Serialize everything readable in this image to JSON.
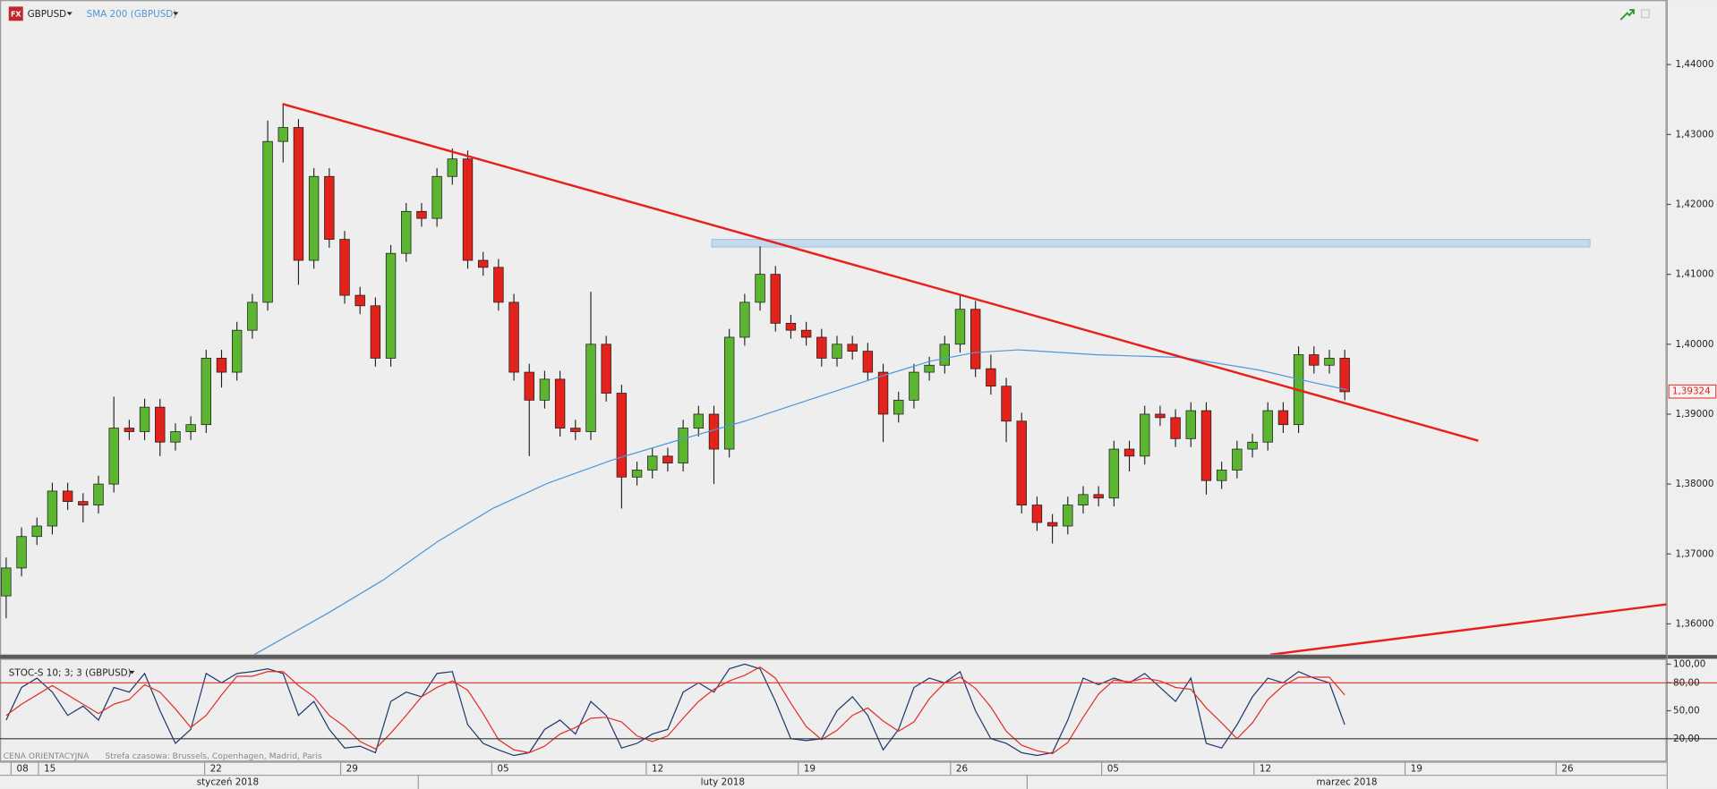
{
  "chart_data": [
    {
      "type": "candlestick",
      "title": "GBPUSD",
      "x": [
        0.2,
        0.7,
        1.2,
        1.7,
        2.2,
        2.7,
        3.2,
        3.7,
        4.2,
        4.7,
        5.2,
        5.7,
        6.2,
        6.7,
        7.2,
        7.7,
        8.2,
        8.7,
        9.2,
        9.7,
        10.2,
        10.7,
        11.2,
        11.7,
        12.2,
        12.7,
        13.2,
        13.7,
        14.2,
        14.7,
        15.2,
        15.7,
        16.2,
        16.7,
        17.2,
        17.7,
        18.2,
        18.7,
        19.2,
        19.7,
        20.2,
        20.7,
        21.2,
        21.7,
        22.2,
        22.7,
        23.2,
        23.7,
        24.2,
        24.7,
        25.2,
        25.7,
        26.2,
        26.7,
        27.2,
        27.7,
        28.2,
        28.7,
        29.2,
        29.7,
        30.2,
        30.7,
        31.2,
        31.7,
        32.2,
        32.7,
        33.2,
        33.7,
        34.2,
        34.7,
        35.2,
        35.7,
        36.2,
        36.7,
        37.2,
        37.7,
        38.2,
        38.7,
        39.2,
        39.7,
        40.2,
        40.7,
        41.2,
        41.7,
        42.2,
        42.7,
        43.2,
        43.7
      ],
      "open": [
        1.364,
        1.368,
        1.3725,
        1.374,
        1.379,
        1.3775,
        1.377,
        1.38,
        1.388,
        1.3875,
        1.391,
        1.386,
        1.3875,
        1.3885,
        1.398,
        1.396,
        1.402,
        1.406,
        1.429,
        1.431,
        1.412,
        1.424,
        1.415,
        1.407,
        1.4055,
        1.398,
        1.413,
        1.419,
        1.418,
        1.424,
        1.4265,
        1.412,
        1.411,
        1.406,
        1.396,
        1.392,
        1.395,
        1.388,
        1.3875,
        1.4,
        1.393,
        1.381,
        1.382,
        1.384,
        1.383,
        1.388,
        1.39,
        1.385,
        1.401,
        1.406,
        1.41,
        1.403,
        1.402,
        1.401,
        1.398,
        1.4,
        1.399,
        1.396,
        1.39,
        1.392,
        1.396,
        1.397,
        1.4,
        1.405,
        1.3965,
        1.394,
        1.389,
        1.377,
        1.3745,
        1.374,
        1.377,
        1.3785,
        1.378,
        1.385,
        1.384,
        1.39,
        1.3895,
        1.3865,
        1.3905,
        1.3805,
        1.382,
        1.385,
        1.386,
        1.3905,
        1.3885,
        1.3985,
        1.397,
        1.398
      ],
      "high": [
        1.3695,
        1.3738,
        1.3752,
        1.3802,
        1.3802,
        1.3787,
        1.3812,
        1.3925,
        1.3892,
        1.3922,
        1.3922,
        1.3887,
        1.3897,
        1.3992,
        1.3992,
        1.4032,
        1.4072,
        1.432,
        1.4343,
        1.4322,
        1.4252,
        1.4252,
        1.4162,
        1.4082,
        1.4067,
        1.4142,
        1.4202,
        1.4202,
        1.4252,
        1.428,
        1.4277,
        1.4132,
        1.4122,
        1.4072,
        1.3972,
        1.3962,
        1.3962,
        1.3892,
        1.4075,
        1.4012,
        1.3942,
        1.3832,
        1.3852,
        1.3852,
        1.3892,
        1.3912,
        1.3912,
        1.4022,
        1.4072,
        1.414,
        1.4112,
        1.4042,
        1.4032,
        1.4022,
        1.4012,
        1.4012,
        1.4002,
        1.3972,
        1.3932,
        1.3972,
        1.3982,
        1.4012,
        1.407,
        1.4062,
        1.3985,
        1.3952,
        1.3902,
        1.3782,
        1.3757,
        1.3782,
        1.3797,
        1.3797,
        1.3862,
        1.3862,
        1.3912,
        1.3912,
        1.3907,
        1.3917,
        1.3917,
        1.3832,
        1.3862,
        1.3872,
        1.3917,
        1.3917,
        1.3997,
        1.3997,
        1.3992,
        1.3992
      ],
      "low": [
        1.3608,
        1.3668,
        1.3713,
        1.3728,
        1.3763,
        1.3745,
        1.3758,
        1.3788,
        1.3863,
        1.3863,
        1.384,
        1.3848,
        1.3863,
        1.3873,
        1.3938,
        1.3948,
        1.4008,
        1.4048,
        1.426,
        1.4085,
        1.4108,
        1.4138,
        1.4058,
        1.4043,
        1.3968,
        1.3968,
        1.4118,
        1.4168,
        1.4168,
        1.4228,
        1.4108,
        1.4098,
        1.4048,
        1.3948,
        1.384,
        1.3908,
        1.3868,
        1.3863,
        1.3863,
        1.3918,
        1.3765,
        1.3798,
        1.3808,
        1.3818,
        1.3818,
        1.3868,
        1.38,
        1.3838,
        1.3998,
        1.4048,
        1.4018,
        1.4008,
        1.3998,
        1.3968,
        1.3968,
        1.3978,
        1.3948,
        1.386,
        1.3888,
        1.3908,
        1.3948,
        1.3958,
        1.3988,
        1.3953,
        1.3928,
        1.386,
        1.3758,
        1.3733,
        1.3715,
        1.3728,
        1.3758,
        1.3768,
        1.3768,
        1.3818,
        1.3828,
        1.3883,
        1.3853,
        1.3853,
        1.3785,
        1.3793,
        1.3808,
        1.3838,
        1.3848,
        1.3873,
        1.3873,
        1.3958,
        1.3958,
        1.392
      ],
      "close": [
        1.368,
        1.3725,
        1.374,
        1.379,
        1.3775,
        1.377,
        1.38,
        1.388,
        1.3875,
        1.391,
        1.386,
        1.3875,
        1.3885,
        1.398,
        1.396,
        1.402,
        1.406,
        1.429,
        1.431,
        1.412,
        1.424,
        1.415,
        1.407,
        1.4055,
        1.398,
        1.413,
        1.419,
        1.418,
        1.424,
        1.4265,
        1.412,
        1.411,
        1.406,
        1.396,
        1.392,
        1.395,
        1.388,
        1.3875,
        1.4,
        1.393,
        1.381,
        1.382,
        1.384,
        1.383,
        1.388,
        1.39,
        1.385,
        1.401,
        1.406,
        1.41,
        1.403,
        1.402,
        1.401,
        1.398,
        1.4,
        1.399,
        1.396,
        1.39,
        1.392,
        1.396,
        1.397,
        1.4,
        1.405,
        1.3965,
        1.394,
        1.389,
        1.377,
        1.3745,
        1.374,
        1.377,
        1.3785,
        1.378,
        1.385,
        1.384,
        1.39,
        1.3895,
        1.3865,
        1.3905,
        1.3805,
        1.382,
        1.385,
        1.386,
        1.3905,
        1.3885,
        1.3985,
        1.397,
        1.398,
        1.3932
      ],
      "up_color": "#5cb531",
      "down_color": "#e3221c",
      "overlays": [
        {
          "name": "SMA 200 (GBPUSD)",
          "color": "#4e97d8",
          "x": [
            8.26,
            10.68,
            12.46,
            14.23,
            16.01,
            17.79,
            19.93,
            22.06,
            24.2,
            26.33,
            28.47,
            30.25,
            31.67,
            33.1,
            35.59,
            38.43,
            40.93,
            42.7,
            43.77
          ],
          "values": [
            1.3556,
            1.3616,
            1.3663,
            1.3718,
            1.3765,
            1.3801,
            1.3835,
            1.3863,
            1.389,
            1.3921,
            1.3952,
            1.3976,
            1.3988,
            1.3992,
            1.3985,
            1.3981,
            1.3963,
            1.3945,
            1.3935
          ]
        }
      ],
      "trendlines": [
        {
          "color": "#e8201c",
          "x": [
            9.18,
            48.04
          ],
          "values": [
            1.43437,
            1.3862
          ]
        },
        {
          "color": "#e8201c",
          "x": [
            41.28,
            54.16
          ],
          "values": [
            1.3556,
            1.3628
          ]
        }
      ],
      "zones": [
        {
          "color": "#b9d3ec",
          "x": [
            23.13,
            51.67
          ],
          "values": [
            1.415,
            1.4139
          ]
        }
      ],
      "last_price": {
        "value": 1.39324,
        "label": "1,39324"
      },
      "xlim": [
        0,
        54.16
      ],
      "ylim": [
        1.35564,
        1.44923
      ],
      "yticks": [
        {
          "value": 1.44,
          "label": "1,44000"
        },
        {
          "value": 1.43,
          "label": "1,43000"
        },
        {
          "value": 1.42,
          "label": "1,42000"
        },
        {
          "value": 1.41,
          "label": "1,41000"
        },
        {
          "value": 1.4,
          "label": "1,40000"
        },
        {
          "value": 1.39,
          "label": "1,39000"
        },
        {
          "value": 1.38,
          "label": "1,38000"
        },
        {
          "value": 1.37,
          "label": "1,37000"
        },
        {
          "value": 1.36,
          "label": "1,36000"
        }
      ],
      "xticks": [
        {
          "value": 0.36,
          "label": "08"
        },
        {
          "value": 1.25,
          "label": "15"
        },
        {
          "value": 6.65,
          "label": "22"
        },
        {
          "value": 11.07,
          "label": "29"
        },
        {
          "value": 15.98,
          "label": "05"
        },
        {
          "value": 21.0,
          "label": "12"
        },
        {
          "value": 25.94,
          "label": "19"
        },
        {
          "value": 30.89,
          "label": "26"
        },
        {
          "value": 35.8,
          "label": "05"
        },
        {
          "value": 40.75,
          "label": "12"
        },
        {
          "value": 45.66,
          "label": "19"
        },
        {
          "value": 50.57,
          "label": "26"
        }
      ],
      "months": [
        "styczeń 2018",
        "luty 2018",
        "marzec 2018"
      ]
    },
    {
      "type": "stochastic",
      "title": "STOC-S 10; 3; 3 (GBPUSD)",
      "series": [
        {
          "color": "#1f3a6e",
          "values": [
            40,
            75,
            85,
            70,
            45,
            55,
            40,
            75,
            70,
            90,
            50,
            15,
            30,
            90,
            80,
            90,
            92,
            95,
            90,
            45,
            60,
            30,
            10,
            12,
            5,
            60,
            70,
            65,
            90,
            92,
            35,
            15,
            8,
            2,
            5,
            30,
            40,
            25,
            60,
            45,
            10,
            15,
            25,
            30,
            70,
            80,
            70,
            95,
            100,
            95,
            60,
            20,
            18,
            20,
            50,
            65,
            45,
            8,
            30,
            75,
            85,
            80,
            92,
            50,
            20,
            15,
            5,
            2,
            5,
            40,
            85,
            78,
            85,
            80,
            90,
            75,
            60,
            85,
            15,
            10,
            35,
            65,
            85,
            80,
            92,
            85,
            80,
            35
          ]
        },
        {
          "color": "#e0302a",
          "values": [
            45,
            57,
            67,
            77,
            67,
            57,
            47,
            57,
            62,
            78,
            70,
            52,
            32,
            45,
            67,
            87,
            87,
            92,
            92,
            77,
            65,
            45,
            33,
            17,
            9,
            26,
            45,
            65,
            75,
            82,
            72,
            47,
            19,
            8,
            5,
            12,
            25,
            32,
            42,
            43,
            38,
            23,
            17,
            23,
            42,
            60,
            73,
            82,
            88,
            97,
            85,
            58,
            33,
            19,
            29,
            45,
            53,
            39,
            28,
            38,
            63,
            80,
            86,
            74,
            54,
            28,
            13,
            7,
            4,
            16,
            43,
            68,
            83,
            81,
            85,
            82,
            75,
            73,
            53,
            37,
            20,
            37,
            62,
            77,
            86,
            86,
            86,
            67
          ]
        }
      ],
      "reference_lines": [
        {
          "value": 80,
          "color": "#e0302a"
        },
        {
          "value": 20,
          "color": "#333333"
        }
      ],
      "ylim": [
        -4.6,
        105.8
      ],
      "yticks": [
        {
          "value": 100,
          "label": "100,00"
        },
        {
          "value": 80,
          "label": "80,00"
        },
        {
          "value": 50,
          "label": "50,00"
        },
        {
          "value": 20,
          "label": "20,00"
        }
      ]
    }
  ],
  "footer": {
    "price_type": "CENA ORIENTACYJNA",
    "timezone": "Strefa czasowa: Brussels, Copenhagen, Madrid, Paris"
  },
  "icon_text": "FX"
}
